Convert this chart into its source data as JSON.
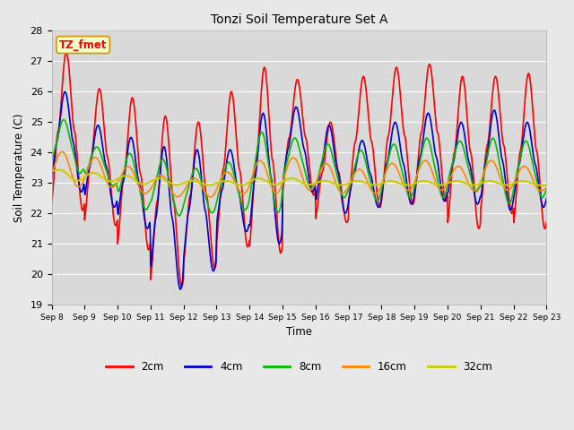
{
  "title": "Tonzi Soil Temperature Set A",
  "xlabel": "Time",
  "ylabel": "Soil Temperature (C)",
  "annotation": "TZ_fmet",
  "ylim": [
    19.0,
    28.0
  ],
  "yticks": [
    19.0,
    20.0,
    21.0,
    22.0,
    23.0,
    24.0,
    25.0,
    26.0,
    27.0,
    28.0
  ],
  "xtick_labels": [
    "Sep 8",
    "Sep 9",
    "Sep 10",
    "Sep 11",
    "Sep 12",
    "Sep 13",
    "Sep 14",
    "Sep 15",
    "Sep 16",
    "Sep 17",
    "Sep 18",
    "Sep 19",
    "Sep 20",
    "Sep 21",
    "Sep 22",
    "Sep 23"
  ],
  "series_colors": [
    "#ff0000",
    "#0000cc",
    "#00bb00",
    "#ff8800",
    "#cccc00"
  ],
  "series_lw": [
    1.2,
    1.2,
    1.2,
    1.2,
    1.5
  ],
  "series_labels": [
    "2cm",
    "4cm",
    "8cm",
    "16cm",
    "32cm"
  ],
  "fig_facecolor": "#e8e8e8",
  "plot_facecolor": "#d9d9d9",
  "grid_color": "#ffffff",
  "annotation_facecolor": "#ffffcc",
  "annotation_edgecolor": "#cc9900"
}
